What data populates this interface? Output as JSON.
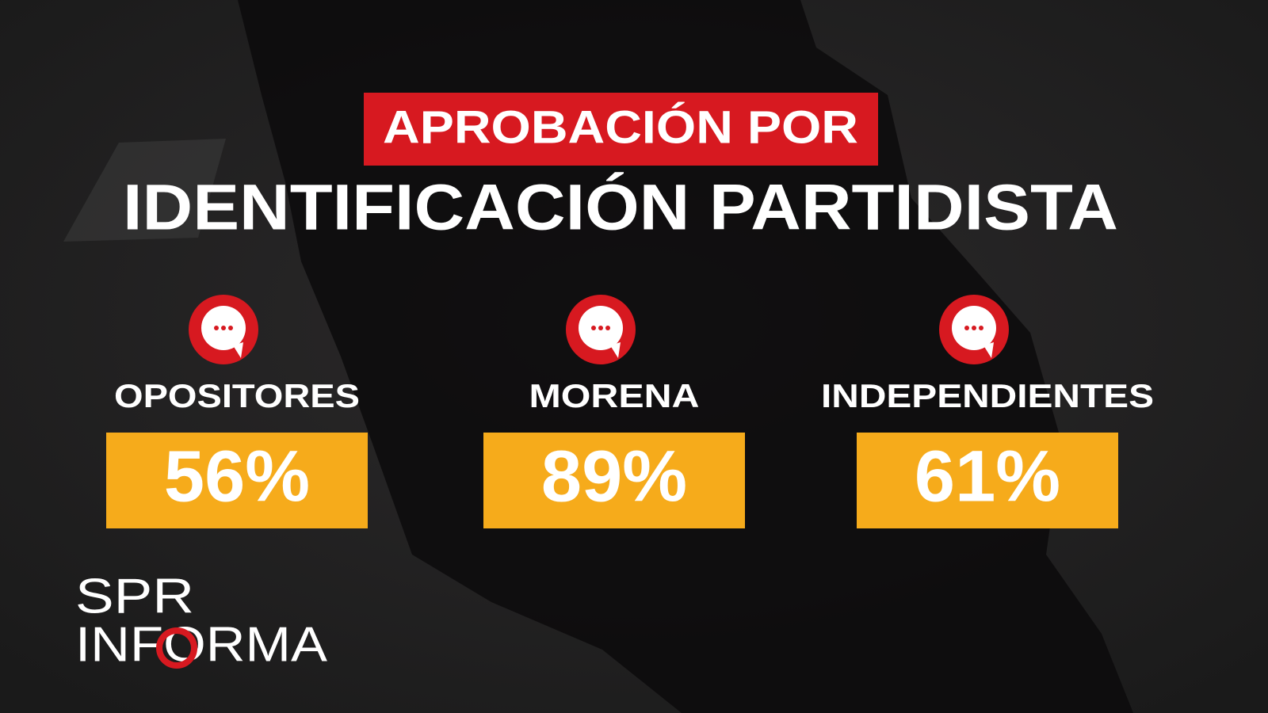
{
  "header": {
    "title": "APROBACIÓN POR",
    "subtitle": "IDENTIFICACIÓN PARTIDISTA"
  },
  "items": [
    {
      "label": "OPOSITORES",
      "value": "56%"
    },
    {
      "label": "MORENA",
      "value": "89%"
    },
    {
      "label": "INDEPENDIENTES",
      "value": "61%"
    }
  ],
  "logo": {
    "line1": "SPR",
    "line2": "INFORMA"
  }
}
